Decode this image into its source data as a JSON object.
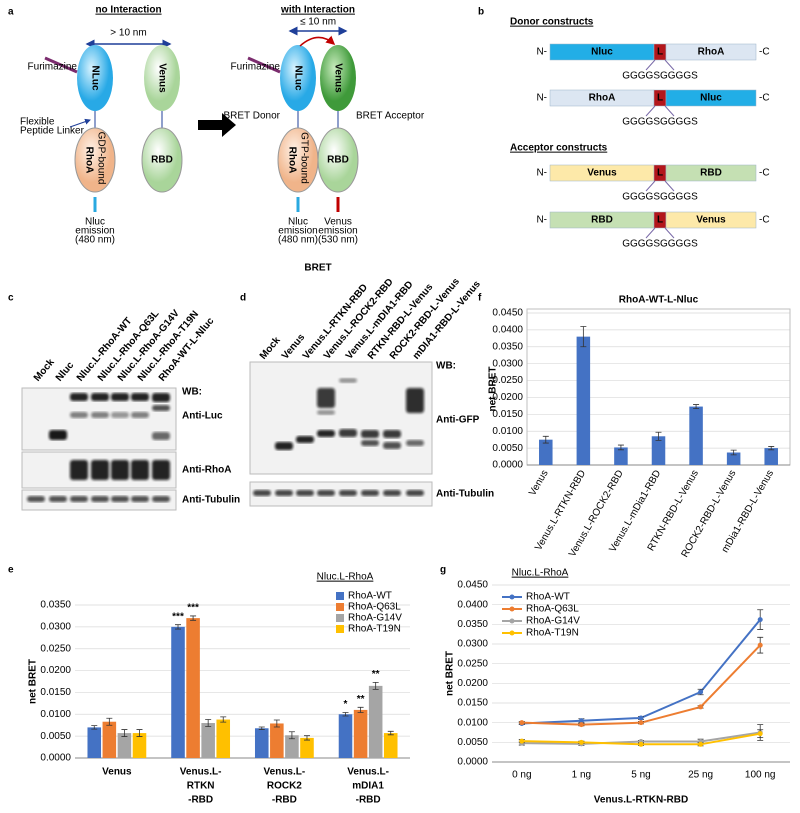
{
  "panel_labels": [
    "a",
    "b",
    "c",
    "d",
    "e",
    "f",
    "g"
  ],
  "diagram_a": {
    "left": {
      "title": "no Interaction",
      "distance": "> 10 nm",
      "substrate": "Furimazine",
      "donor": "NLuc",
      "acceptor": "Venus",
      "linker": [
        "Flexible",
        "Peptide Linker"
      ],
      "state": "GDP-bound",
      "gtpase": "RhoA",
      "effector": "RBD",
      "donor_emission": [
        "Nluc",
        "emission",
        "(480 nm)"
      ]
    },
    "right": {
      "title": "with Interaction",
      "distance": "≤ 10 nm",
      "substrate": "Furimazine",
      "donor": "NLuc",
      "acceptor": "Venus",
      "donor_role": "BRET Donor",
      "acceptor_role": "BRET Acceptor",
      "state": "GTP-bound",
      "gtpase": "RhoA",
      "effector": "RBD",
      "donor_emission": [
        "Nluc",
        "emission",
        "(480 nm)"
      ],
      "acceptor_emission": [
        "Venus",
        "emission",
        "(530 nm)"
      ],
      "result": "BRET"
    }
  },
  "diagram_b": {
    "donor_title": "Donor constructs",
    "donors": [
      {
        "n": "N-",
        "c": "-C",
        "linker": "GGGGSGGGGS",
        "parts": [
          {
            "label": "Nluc",
            "color": "#22aee6"
          },
          {
            "label": "L",
            "color": "#b3161b"
          },
          {
            "label": "RhoA",
            "color": "#dce6f2"
          }
        ]
      },
      {
        "n": "N-",
        "c": "-C",
        "linker": "GGGGSGGGGS",
        "parts": [
          {
            "label": "RhoA",
            "color": "#dce6f2"
          },
          {
            "label": "L",
            "color": "#b3161b"
          },
          {
            "label": "Nluc",
            "color": "#22aee6"
          }
        ]
      }
    ],
    "acceptor_title": "Acceptor constructs",
    "acceptors": [
      {
        "n": "N-",
        "c": "-C",
        "linker": "GGGGSGGGGS",
        "parts": [
          {
            "label": "Venus",
            "color": "#fde9a9"
          },
          {
            "label": "L",
            "color": "#b3161b"
          },
          {
            "label": "RBD",
            "color": "#c5e0b3"
          }
        ]
      },
      {
        "n": "N-",
        "c": "-C",
        "linker": "GGGGSGGGGS",
        "parts": [
          {
            "label": "RBD",
            "color": "#c5e0b3"
          },
          {
            "label": "L",
            "color": "#b3161b"
          },
          {
            "label": "Venus",
            "color": "#fde9a9"
          }
        ]
      }
    ]
  },
  "blot_c": {
    "lanes": [
      "Mock",
      "Nluc",
      "Nluc.L-RhoA-WT",
      "Nluc.L-RhoA-Q63L",
      "Nluc.L-RhoA-G14V",
      "Nluc.L-RhoA-T19N",
      "RhoA-WT-L-Nluc"
    ],
    "wb": "WB:",
    "antibodies": [
      "Anti-Luc",
      "Anti-RhoA",
      "Anti-Tubulin"
    ]
  },
  "blot_d": {
    "lanes": [
      "Mock",
      "Venus",
      "Venus.L-RTKN-RBD",
      "Venus.L-ROCK2-RBD",
      "Venus.L-mDIA1-RBD",
      "RTKN-RBD-L-Venus",
      "ROCK2-RBD-L-Venus",
      "mDIA1-RBD-L-Venus"
    ],
    "wb": "WB:",
    "antibodies": [
      "Anti-GFP",
      "Anti-Tubulin"
    ]
  },
  "chart_data": [
    {
      "type": "bar",
      "title": "RhoA-WT-L-Nluc",
      "y_label": "net BRET",
      "color": "#4472c4",
      "grid": true,
      "categories": [
        "Venus",
        "Venus.L-RTKN-RBD",
        "Venus.L-ROCK2-RBD",
        "Venus.L-mDia1-RBD",
        "RTKN-RBD-L-Venus",
        "ROCK2-RBD-L-Venus",
        "mDia1-RBD-L-Venus"
      ],
      "values": [
        0.0075,
        0.038,
        0.0052,
        0.0085,
        0.0173,
        0.0037,
        0.005
      ],
      "errors": [
        0.001,
        0.003,
        0.0007,
        0.0012,
        0.0006,
        0.0007,
        0.0005
      ],
      "ylim": [
        0,
        0.045
      ],
      "yticks": [
        {
          "value": 0,
          "label": "0.0000"
        },
        {
          "value": 0.005,
          "label": "0.0050"
        },
        {
          "value": 0.01,
          "label": "0.0100"
        },
        {
          "value": 0.015,
          "label": "0.0150"
        },
        {
          "value": 0.02,
          "label": "0.0200"
        },
        {
          "value": 0.025,
          "label": "0.0250"
        },
        {
          "value": 0.03,
          "label": "0.0300"
        },
        {
          "value": 0.035,
          "label": "0.0350"
        },
        {
          "value": 0.04,
          "label": "0.0400"
        },
        {
          "value": 0.045,
          "label": "0.0450"
        }
      ]
    },
    {
      "type": "bar",
      "title": "Nluc.L-RhoA",
      "y_label": "net BRET",
      "grid": true,
      "legend": "top-right",
      "categories": [
        [
          "Venus"
        ],
        [
          "Venus.L-",
          "RTKN",
          "-RBD"
        ],
        [
          "Venus.L-",
          "ROCK2",
          "-RBD"
        ],
        [
          "Venus.L-",
          "mDIA1",
          "-RBD"
        ]
      ],
      "series": [
        {
          "name": "RhoA-WT",
          "color": "#4472c4",
          "values": [
            0.007,
            0.03,
            0.0068,
            0.01
          ],
          "errors": [
            0.0004,
            0.0005,
            0.0003,
            0.0004
          ],
          "significance": [
            null,
            "***",
            null,
            "*"
          ]
        },
        {
          "name": "RhoA-Q63L",
          "color": "#ed7d31",
          "values": [
            0.0083,
            0.032,
            0.0079,
            0.011
          ],
          "errors": [
            0.0008,
            0.0005,
            0.0008,
            0.0006
          ],
          "significance": [
            null,
            "***",
            null,
            "**"
          ]
        },
        {
          "name": "RhoA-G14V",
          "color": "#a5a5a5",
          "values": [
            0.0057,
            0.008,
            0.0052,
            0.0165
          ],
          "errors": [
            0.0008,
            0.0008,
            0.0008,
            0.0008
          ],
          "significance": [
            null,
            null,
            null,
            "**"
          ]
        },
        {
          "name": "RhoA-T19N",
          "color": "#ffc000",
          "values": [
            0.0057,
            0.0088,
            0.0046,
            0.0057
          ],
          "errors": [
            0.0008,
            0.0006,
            0.0005,
            0.0004
          ],
          "significance": [
            null,
            null,
            null,
            null
          ]
        }
      ],
      "ylim": [
        0,
        0.035
      ],
      "yticks": [
        {
          "value": 0,
          "label": "0.0000"
        },
        {
          "value": 0.005,
          "label": "0.0050"
        },
        {
          "value": 0.01,
          "label": "0.0100"
        },
        {
          "value": 0.015,
          "label": "0.0150"
        },
        {
          "value": 0.02,
          "label": "0.0200"
        },
        {
          "value": 0.025,
          "label": "0.0250"
        },
        {
          "value": 0.03,
          "label": "0.0300"
        },
        {
          "value": 0.035,
          "label": "0.0350"
        }
      ]
    },
    {
      "type": "line",
      "title": "Nluc.L-RhoA",
      "x_label": "Venus.L-RTKN-RBD",
      "y_label": "net BRET",
      "grid": true,
      "legend": "top-left",
      "categories": [
        "0 ng",
        "1 ng",
        "5 ng",
        "25 ng",
        "100 ng"
      ],
      "series": [
        {
          "name": "RhoA-WT",
          "color": "#4472c4",
          "values": [
            0.0098,
            0.0105,
            0.0112,
            0.0178,
            0.0362
          ],
          "errors": [
            0.0003,
            0.0005,
            0.0004,
            0.0007,
            0.0025
          ]
        },
        {
          "name": "RhoA-Q63L",
          "color": "#ed7d31",
          "values": [
            0.01,
            0.0095,
            0.01,
            0.014,
            0.0297
          ],
          "errors": [
            0.0003,
            0.0003,
            0.0003,
            0.0003,
            0.002
          ]
        },
        {
          "name": "RhoA-G14V",
          "color": "#a5a5a5",
          "values": [
            0.0048,
            0.0046,
            0.0052,
            0.0052,
            0.0075
          ],
          "errors": [
            0.0005,
            0.0004,
            0.0003,
            0.0006,
            0.002
          ]
        },
        {
          "name": "RhoA-T19N",
          "color": "#ffc000",
          "values": [
            0.0053,
            0.005,
            0.0045,
            0.0045,
            0.0072
          ],
          "errors": [
            0.0004,
            0.0003,
            0.0003,
            0.0004,
            0.001
          ]
        }
      ],
      "ylim": [
        0,
        0.045
      ],
      "yticks": [
        {
          "value": 0,
          "label": "0.0000"
        },
        {
          "value": 0.005,
          "label": "0.0050"
        },
        {
          "value": 0.01,
          "label": "0.0100"
        },
        {
          "value": 0.015,
          "label": "0.0150"
        },
        {
          "value": 0.02,
          "label": "0.0200"
        },
        {
          "value": 0.025,
          "label": "0.0250"
        },
        {
          "value": 0.03,
          "label": "0.0300"
        },
        {
          "value": 0.035,
          "label": "0.0350"
        },
        {
          "value": 0.04,
          "label": "0.0400"
        },
        {
          "value": 0.045,
          "label": "0.0450"
        }
      ]
    }
  ]
}
